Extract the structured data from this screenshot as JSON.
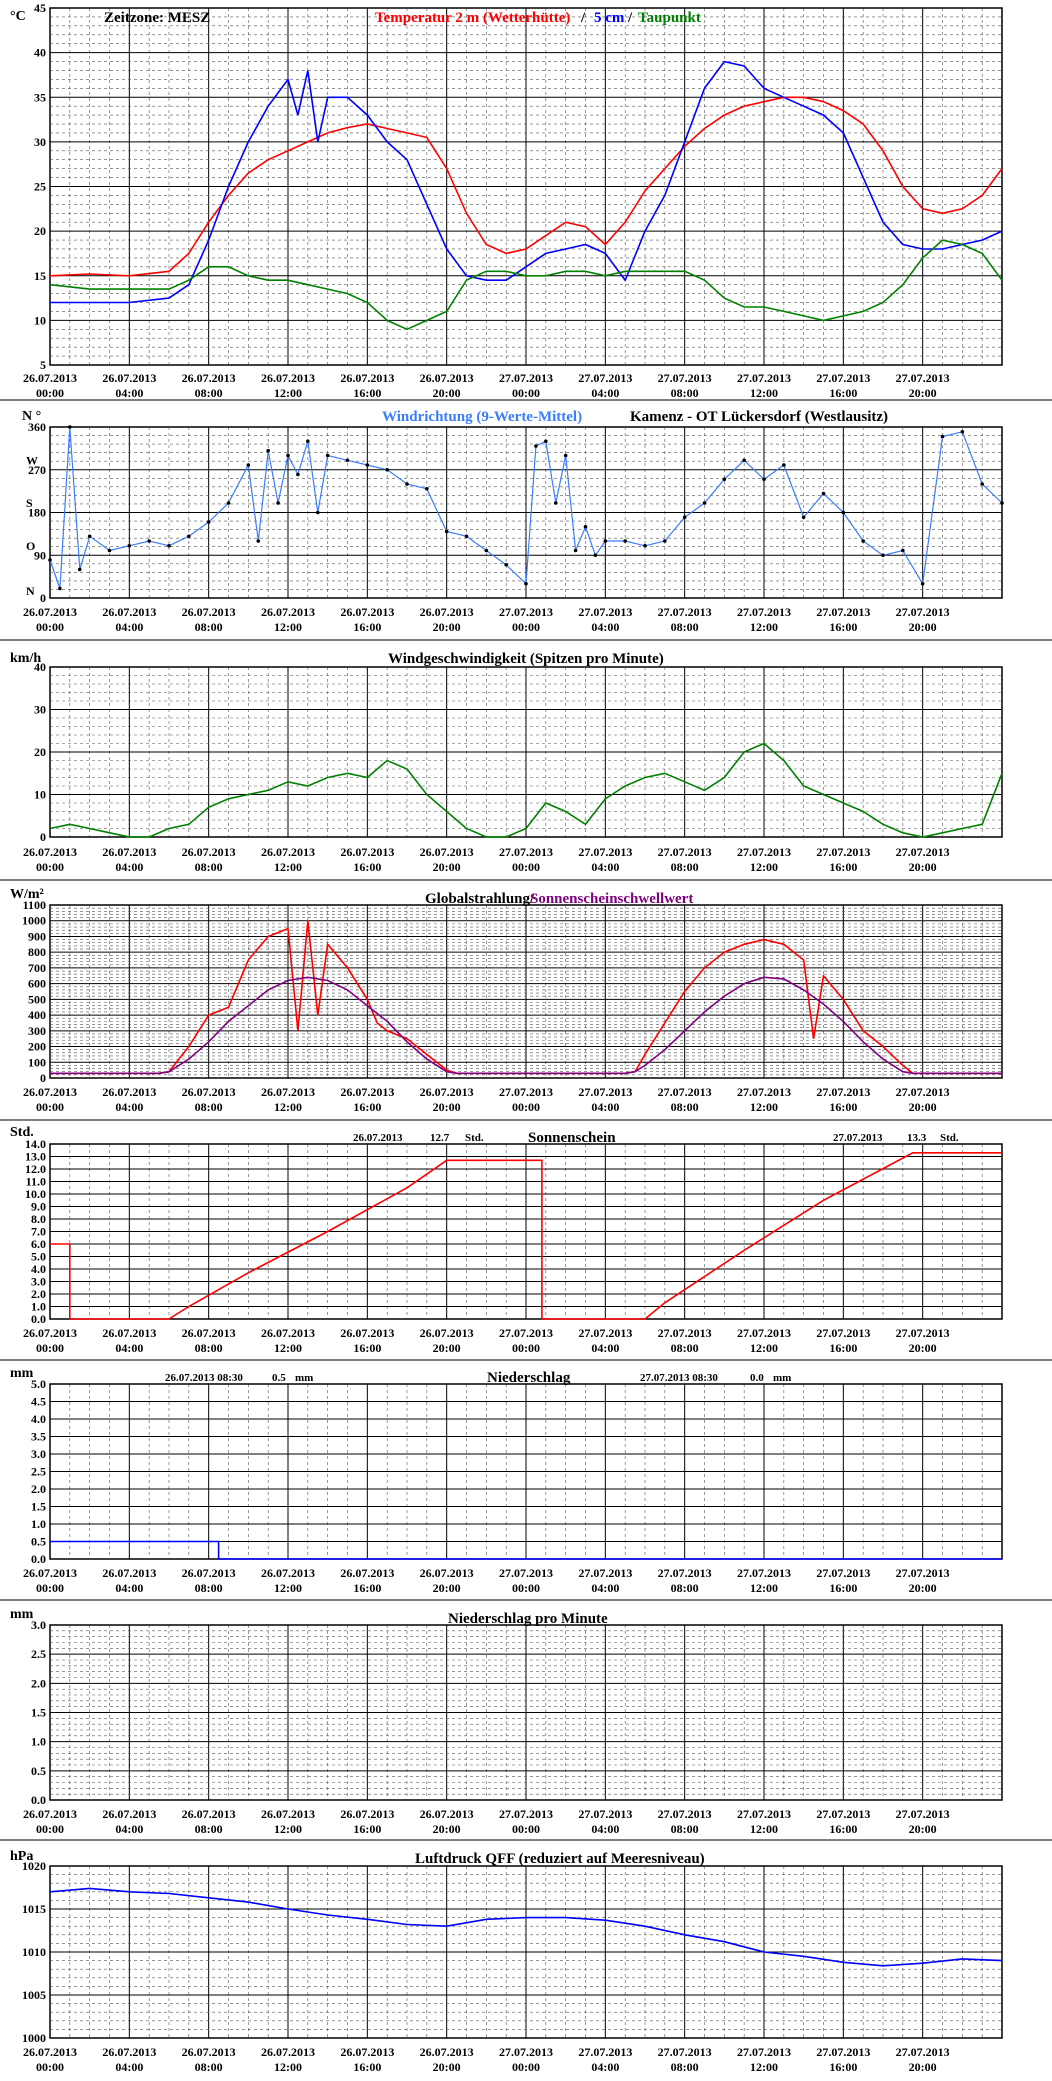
{
  "header": {
    "timezone": "Zeitzone: MESZ",
    "station": "Kamenz - OT Lückersdorf (Westlausitz)"
  },
  "time_axis": {
    "labels": [
      [
        "26.07.2013",
        "00:00"
      ],
      [
        "26.07.2013",
        "04:00"
      ],
      [
        "26.07.2013",
        "08:00"
      ],
      [
        "26.07.2013",
        "12:00"
      ],
      [
        "26.07.2013",
        "16:00"
      ],
      [
        "26.07.2013",
        "20:00"
      ],
      [
        "27.07.2013",
        "00:00"
      ],
      [
        "27.07.2013",
        "04:00"
      ],
      [
        "27.07.2013",
        "08:00"
      ],
      [
        "27.07.2013",
        "12:00"
      ],
      [
        "27.07.2013",
        "16:00"
      ],
      [
        "27.07.2013",
        "20:00"
      ]
    ],
    "range_hours": [
      0,
      48
    ]
  },
  "colors": {
    "temperature": "#ff0000",
    "soil5cm": "#0000ff",
    "dewpoint": "#008000",
    "wind_dir": "#3a7dff",
    "wind_dir_mean": "#000000",
    "wind_speed": "#008000",
    "radiation": "#ff0000",
    "threshold": "#800080",
    "sunshine": "#ff0000",
    "precip": "#0000ff",
    "pressure": "#0000ff"
  },
  "chart_data": [
    {
      "type": "line",
      "id": "temperature",
      "unit": "°C",
      "title_parts": [
        "Temperatur 2 m (Wetterhütte)",
        "/",
        "5 cm",
        "/",
        "Taupunkt"
      ],
      "ylim": [
        5,
        45
      ],
      "yticks": [
        5,
        10,
        15,
        20,
        25,
        30,
        35,
        40,
        45
      ],
      "series": [
        {
          "name": "Temperatur 2 m (Wetterhütte)",
          "x": [
            0,
            2,
            4,
            6,
            7,
            8,
            9,
            10,
            11,
            12,
            13,
            14,
            15,
            16,
            17,
            18,
            19,
            20,
            21,
            22,
            23,
            24,
            25,
            26,
            27,
            28,
            29,
            30,
            31,
            32,
            33,
            34,
            35,
            36,
            37,
            38,
            39,
            40,
            41,
            42,
            43,
            44,
            45,
            46,
            47,
            48
          ],
          "values": [
            15,
            15.2,
            15,
            15.5,
            17.5,
            21,
            24,
            26.5,
            28,
            29,
            30,
            31,
            31.6,
            32,
            31.5,
            31,
            30.5,
            27,
            22,
            18.5,
            17.5,
            18,
            19.5,
            21,
            20.5,
            18.5,
            21,
            24.5,
            27,
            29.5,
            31.5,
            33,
            34,
            34.5,
            35,
            35,
            34.5,
            33.5,
            32,
            29,
            25,
            22.5,
            22,
            22.5,
            24,
            27
          ]
        },
        {
          "name": "5 cm",
          "x": [
            0,
            2,
            4,
            6,
            7,
            8,
            9,
            10,
            11,
            12,
            12.5,
            13,
            13.5,
            14,
            15,
            16,
            17,
            18,
            19,
            20,
            21,
            22,
            23,
            24,
            25,
            26,
            27,
            28,
            29,
            30,
            31,
            32,
            33,
            34,
            35,
            36,
            37,
            38,
            39,
            40,
            41,
            42,
            43,
            44,
            45,
            46,
            47,
            48
          ],
          "values": [
            12,
            12,
            12,
            12.5,
            14,
            19,
            25,
            30,
            34,
            37,
            33,
            38,
            30,
            35,
            35,
            33,
            30,
            28,
            23,
            18,
            15,
            14.5,
            14.5,
            16,
            17.5,
            18,
            18.5,
            17.5,
            14.5,
            20,
            24,
            30,
            36,
            39,
            38.5,
            36,
            35,
            34,
            33,
            31,
            26,
            21,
            18.5,
            18,
            18,
            18.5,
            19,
            20
          ]
        },
        {
          "name": "Taupunkt",
          "x": [
            0,
            2,
            4,
            6,
            7,
            8,
            9,
            10,
            11,
            12,
            13,
            14,
            15,
            16,
            17,
            18,
            19,
            20,
            21,
            22,
            23,
            24,
            25,
            26,
            27,
            28,
            29,
            30,
            31,
            32,
            33,
            34,
            35,
            36,
            37,
            38,
            39,
            40,
            41,
            42,
            43,
            44,
            45,
            46,
            47,
            48
          ],
          "values": [
            14,
            13.5,
            13.5,
            13.5,
            14.5,
            16,
            16,
            15,
            14.5,
            14.5,
            14,
            13.5,
            13,
            12,
            10,
            9,
            10,
            11,
            14.5,
            15.5,
            15.5,
            15,
            15,
            15.5,
            15.5,
            15,
            15.5,
            15.5,
            15.5,
            15.5,
            14.5,
            12.5,
            11.5,
            11.5,
            11,
            10.5,
            10,
            10.5,
            11,
            12,
            14,
            17,
            19,
            18.5,
            17.5,
            14.5
          ]
        }
      ]
    },
    {
      "type": "scatter",
      "id": "wind_direction",
      "unit": "N °",
      "title_parts": [
        "Windrichtung (9-Werte-Mittel)",
        "Kamenz - OT Lückersdorf (Westlausitz)"
      ],
      "ylim": [
        0,
        360
      ],
      "yticks": [
        0,
        90,
        180,
        270,
        360
      ],
      "direction_labels": [
        [
          "N",
          15
        ],
        [
          "O",
          110
        ],
        [
          "S",
          200
        ],
        [
          "W",
          290
        ]
      ],
      "series": [
        {
          "name": "Windrichtung (9-Werte-Mittel)",
          "x": [
            0,
            0.5,
            1,
            1.5,
            2,
            3,
            4,
            5,
            6,
            7,
            8,
            9,
            10,
            10.5,
            11,
            11.5,
            12,
            12.5,
            13,
            13.5,
            14,
            15,
            16,
            17,
            18,
            19,
            20,
            21,
            22,
            23,
            24,
            24.5,
            25,
            25.5,
            26,
            26.5,
            27,
            27.5,
            28,
            29,
            30,
            31,
            32,
            33,
            34,
            35,
            36,
            37,
            38,
            39,
            40,
            41,
            42,
            43,
            44,
            45,
            46,
            47,
            48
          ],
          "values": [
            80,
            20,
            360,
            60,
            130,
            100,
            110,
            120,
            110,
            130,
            160,
            200,
            280,
            120,
            310,
            200,
            300,
            260,
            330,
            180,
            300,
            290,
            280,
            270,
            240,
            230,
            140,
            130,
            100,
            70,
            30,
            320,
            330,
            200,
            300,
            100,
            150,
            90,
            120,
            120,
            110,
            120,
            170,
            200,
            250,
            290,
            250,
            280,
            170,
            220,
            180,
            120,
            90,
            100,
            30,
            340,
            350,
            240,
            200
          ]
        }
      ]
    },
    {
      "type": "line",
      "id": "wind_speed",
      "unit": "km/h",
      "title": "Windgeschwindigkeit (Spitzen pro Minute)",
      "ylim": [
        0,
        40
      ],
      "yticks": [
        0,
        10,
        20,
        30,
        40
      ],
      "series": [
        {
          "name": "Windgeschwindigkeit",
          "x": [
            0,
            1,
            2,
            3,
            4,
            5,
            6,
            7,
            8,
            9,
            10,
            11,
            12,
            13,
            14,
            15,
            16,
            17,
            18,
            19,
            20,
            21,
            22,
            23,
            24,
            25,
            26,
            27,
            28,
            29,
            30,
            31,
            32,
            33,
            34,
            35,
            36,
            37,
            38,
            39,
            40,
            41,
            42,
            43,
            44,
            45,
            46,
            47,
            48
          ],
          "values": [
            2,
            3,
            2,
            1,
            0,
            0,
            2,
            3,
            7,
            9,
            10,
            11,
            13,
            12,
            14,
            15,
            14,
            18,
            16,
            10,
            6,
            2,
            0,
            0,
            2,
            8,
            6,
            3,
            9,
            12,
            14,
            15,
            13,
            11,
            14,
            20,
            22,
            18,
            12,
            10,
            8,
            6,
            3,
            1,
            0,
            1,
            2,
            3,
            15
          ]
        }
      ]
    },
    {
      "type": "line",
      "id": "radiation",
      "unit": "W/m²",
      "title_parts": [
        "Globalstrahlung/",
        "Sonnenscheinschwellwert"
      ],
      "ylim": [
        0,
        1100
      ],
      "yticks": [
        0,
        100,
        200,
        300,
        400,
        500,
        600,
        700,
        800,
        900,
        1000,
        1100
      ],
      "series": [
        {
          "name": "Globalstrahlung",
          "x": [
            0,
            5.5,
            6,
            7,
            8,
            9,
            10,
            11,
            12,
            12.5,
            13,
            13.5,
            14,
            15,
            16,
            16.5,
            17,
            18,
            19,
            20,
            20.5,
            29,
            29.5,
            30,
            31,
            32,
            33,
            34,
            35,
            36,
            37,
            38,
            38.5,
            39,
            40,
            41,
            42,
            43,
            43.5,
            48
          ],
          "values": [
            30,
            30,
            40,
            200,
            400,
            450,
            750,
            900,
            950,
            300,
            1000,
            400,
            850,
            700,
            500,
            350,
            300,
            250,
            150,
            50,
            30,
            30,
            40,
            150,
            350,
            550,
            700,
            800,
            850,
            880,
            850,
            750,
            250,
            650,
            500,
            300,
            200,
            80,
            30,
            30
          ]
        },
        {
          "name": "Sonnenscheinschwellwert",
          "x": [
            0,
            5.5,
            6,
            7,
            8,
            9,
            10,
            11,
            12,
            13,
            14,
            15,
            16,
            17,
            18,
            19,
            20,
            20.5,
            29,
            29.5,
            30,
            31,
            32,
            33,
            34,
            35,
            36,
            37,
            38,
            39,
            40,
            41,
            42,
            43,
            43.5,
            48
          ],
          "values": [
            30,
            30,
            40,
            120,
            230,
            360,
            460,
            560,
            620,
            640,
            620,
            560,
            460,
            360,
            230,
            120,
            40,
            30,
            30,
            40,
            80,
            180,
            300,
            420,
            520,
            600,
            640,
            630,
            560,
            470,
            360,
            230,
            120,
            40,
            30,
            30
          ]
        }
      ]
    },
    {
      "type": "line",
      "id": "sunshine",
      "unit": "Std.",
      "title": "Sonnenschein",
      "daily_totals": [
        {
          "date": "26.07.2013",
          "value": "12.7",
          "unit": "Std."
        },
        {
          "date": "27.07.2013",
          "value": "13.3",
          "unit": "Std."
        }
      ],
      "ylim": [
        0,
        14
      ],
      "yticks": [
        0.0,
        1.0,
        2.0,
        3.0,
        4.0,
        5.0,
        6.0,
        7.0,
        8.0,
        9.0,
        10.0,
        11.0,
        12.0,
        13.0,
        14.0
      ],
      "ytick_labels": [
        "0.0",
        "1.0",
        "2.0",
        "3.0",
        "4.0",
        "5.0",
        "6.0",
        "7.0",
        "8.0",
        "9.0",
        "10.0",
        "11.0",
        "12.0",
        "13.0",
        "14.0"
      ],
      "series": [
        {
          "name": "Sonnenschein",
          "x": [
            0,
            1,
            1,
            6,
            7,
            10,
            14,
            18,
            20,
            24.8,
            24.8,
            30,
            31,
            35,
            39,
            43.5,
            48
          ],
          "values": [
            6,
            6,
            0,
            0,
            1,
            3.7,
            7,
            10.5,
            12.7,
            12.7,
            0,
            0,
            1.3,
            5.5,
            9.5,
            13.3,
            13.3
          ]
        }
      ]
    },
    {
      "type": "line",
      "id": "precipitation",
      "unit": "mm",
      "title": "Niederschlag",
      "daily_totals": [
        {
          "date": "26.07.2013 08:30",
          "value": "0.5",
          "unit": "mm"
        },
        {
          "date": "27.07.2013 08:30",
          "value": "0.0",
          "unit": "mm"
        }
      ],
      "ylim": [
        0,
        5
      ],
      "yticks": [
        0.0,
        0.5,
        1.0,
        1.5,
        2.0,
        2.5,
        3.0,
        3.5,
        4.0,
        4.5,
        5.0
      ],
      "ytick_labels": [
        "0.0",
        "0.5",
        "1.0",
        "1.5",
        "2.0",
        "2.5",
        "3.0",
        "3.5",
        "4.0",
        "4.5",
        "5.0"
      ],
      "series": [
        {
          "name": "Niederschlag",
          "x": [
            0,
            8.5,
            8.5,
            48
          ],
          "values": [
            0.5,
            0.5,
            0,
            0
          ]
        }
      ]
    },
    {
      "type": "line",
      "id": "precip_minute",
      "unit": "mm",
      "title": "Niederschlag pro Minute",
      "ylim": [
        0,
        3
      ],
      "yticks": [
        0.0,
        0.5,
        1.0,
        1.5,
        2.0,
        2.5,
        3.0
      ],
      "ytick_labels": [
        "0.0",
        "0.5",
        "1.0",
        "1.5",
        "2.0",
        "2.5",
        "3.0"
      ],
      "series": []
    },
    {
      "type": "line",
      "id": "pressure",
      "unit": "hPa",
      "title": "Luftdruck QFF (reduziert auf Meeresniveau)",
      "ylim": [
        1000,
        1020
      ],
      "yticks": [
        1000,
        1005,
        1010,
        1015,
        1020
      ],
      "series": [
        {
          "name": "Luftdruck QFF",
          "x": [
            0,
            2,
            4,
            6,
            8,
            10,
            12,
            14,
            16,
            18,
            20,
            22,
            24,
            26,
            28,
            30,
            32,
            34,
            36,
            38,
            40,
            42,
            44,
            46,
            48
          ],
          "values": [
            1017,
            1017.4,
            1017,
            1016.8,
            1016.3,
            1015.8,
            1015,
            1014.3,
            1013.8,
            1013.2,
            1013,
            1013.8,
            1014,
            1014,
            1013.7,
            1013,
            1012,
            1011.2,
            1010,
            1009.5,
            1008.8,
            1008.4,
            1008.7,
            1009.2,
            1009
          ]
        }
      ]
    }
  ]
}
